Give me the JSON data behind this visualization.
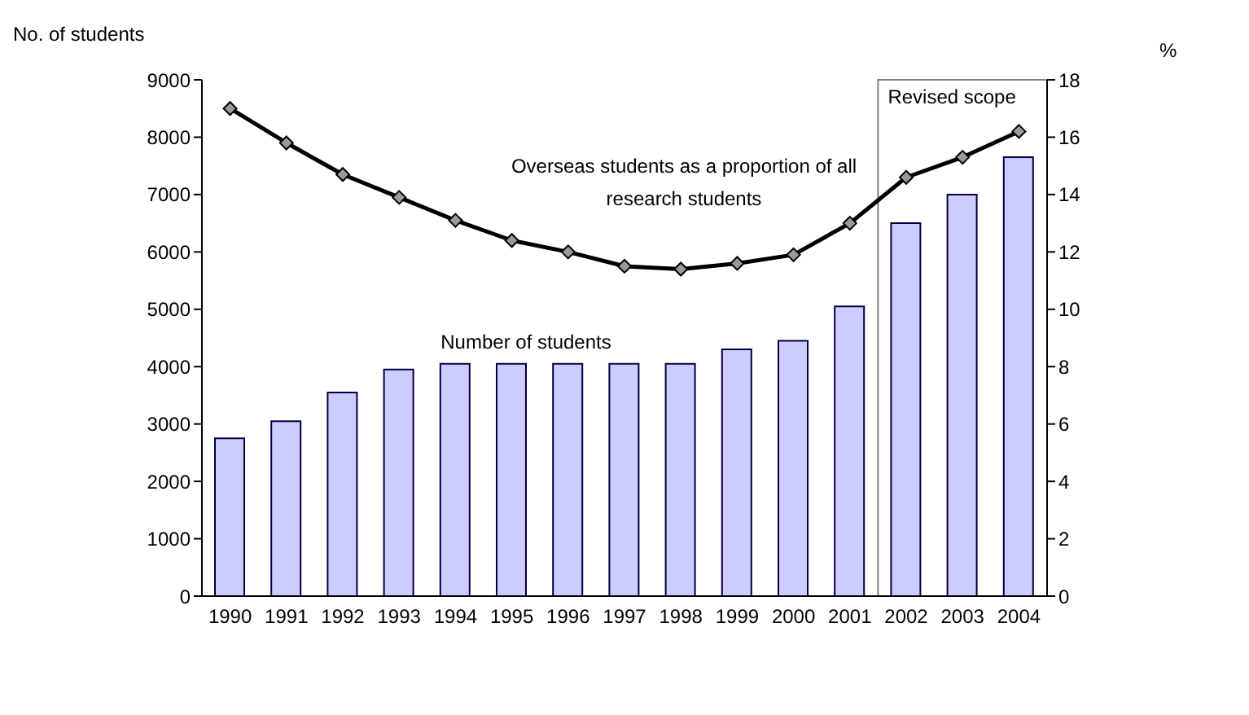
{
  "chart_data": {
    "type": "bar",
    "ylabel": "No. of students",
    "y2label": "%",
    "categories": [
      "1990",
      "1991",
      "1992",
      "1993",
      "1994",
      "1995",
      "1996",
      "1997",
      "1998",
      "1999",
      "2000",
      "2001",
      "2002",
      "2003",
      "2004"
    ],
    "series": [
      {
        "name": "Number of students",
        "color": "#ccccff",
        "values": [
          2750,
          3050,
          3550,
          3950,
          4050,
          4050,
          4050,
          4050,
          4050,
          4300,
          4450,
          5050,
          6500,
          7000,
          7650
        ]
      },
      {
        "name": "Overseas students as a proportion of all research students",
        "type": "line",
        "axis": "y2",
        "color": "#000000",
        "marker": "diamond",
        "values": [
          17.0,
          15.8,
          14.7,
          13.9,
          13.1,
          12.4,
          12.0,
          11.5,
          11.4,
          11.6,
          11.9,
          13.0,
          14.6,
          15.3,
          16.2
        ]
      }
    ],
    "ylim": [
      0,
      9000
    ],
    "yticks": [
      0,
      1000,
      2000,
      3000,
      4000,
      5000,
      6000,
      7000,
      8000,
      9000
    ],
    "y2lim": [
      0,
      18
    ],
    "y2ticks": [
      0,
      2,
      4,
      6,
      8,
      10,
      12,
      14,
      16,
      18
    ],
    "bands": [
      {
        "axis": "x",
        "from": "2002",
        "to": "2004",
        "label": "Revised scope",
        "color": "#ffffff"
      }
    ],
    "grid": false,
    "legend": false
  }
}
